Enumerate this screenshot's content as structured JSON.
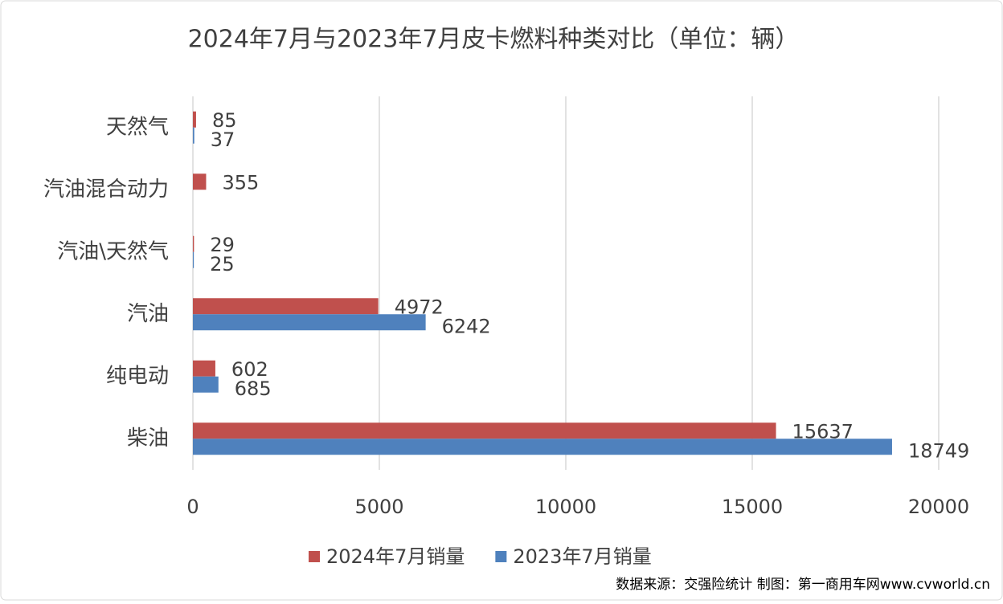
{
  "chart_data": {
    "type": "hbar",
    "title": "2024年7月与2023年7月皮卡燃料种类对比（单位：辆）",
    "categories": [
      "天然气",
      "汽油混合动力",
      "汽油\\天然气",
      "汽油",
      "纯电动",
      "柴油"
    ],
    "series": [
      {
        "name": "2024年7月销量",
        "color": "#c0504d",
        "values": [
          85,
          355,
          29,
          4972,
          602,
          15637
        ]
      },
      {
        "name": "2023年7月销量",
        "color": "#4f81bd",
        "values": [
          37,
          null,
          25,
          6242,
          685,
          18749
        ]
      }
    ],
    "xlim": [
      0,
      20000
    ],
    "xticks": [
      0,
      5000,
      10000,
      15000,
      20000
    ],
    "grid": true,
    "source": "数据来源：交强险统计 制图：第一商用车网www.cvworld.cn"
  }
}
